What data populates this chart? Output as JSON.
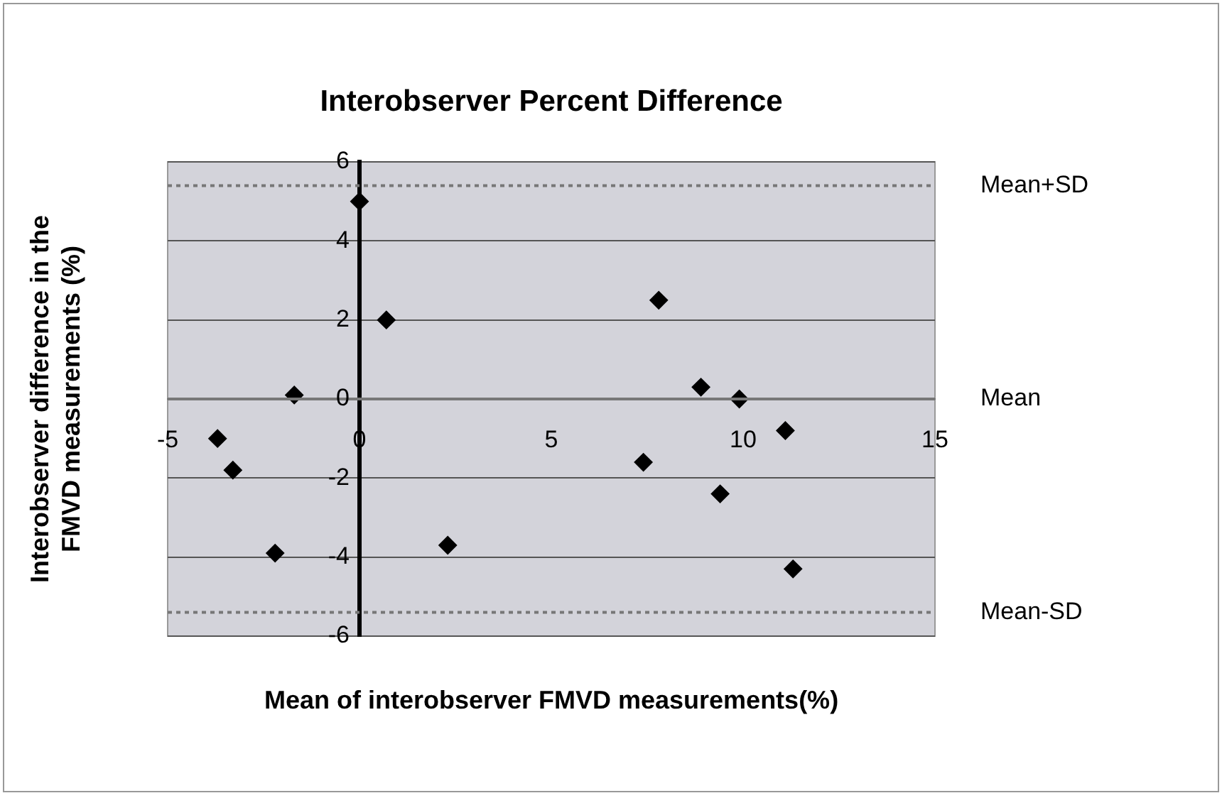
{
  "chart_data": {
    "type": "scatter",
    "title": "Interobserver Percent Difference",
    "xlabel": "Mean of interobserver FMVD measurements(%)",
    "ylabel": "Interobserver difference in the FMVD measurements (%)",
    "series": [
      {
        "color": "#000000",
        "x": [
          0,
          0.7,
          -1.7,
          -3.7,
          -3.3,
          -2.2,
          2.3,
          7.8,
          8.9,
          9.9,
          11.1,
          7.4,
          9.4,
          11.3
        ],
        "values": [
          5.0,
          2.0,
          0.1,
          -1.0,
          -1.8,
          -3.9,
          -3.7,
          2.5,
          0.3,
          0.0,
          -0.8,
          -1.6,
          -2.4,
          -4.3
        ]
      }
    ],
    "xlim": [
      -5,
      15
    ],
    "xticks": [
      -5,
      0,
      5,
      10,
      15
    ],
    "ylim": [
      -6,
      6
    ],
    "yticks": [
      -6,
      -4,
      -2,
      0,
      2,
      4,
      6
    ],
    "ref_lines": [
      {
        "axis": "y",
        "value": 5.4,
        "label": "Mean+SD",
        "line_style": "dotted",
        "color": "#777777"
      },
      {
        "axis": "y",
        "value": 0,
        "label": "Mean",
        "line_style": "solid",
        "color": "#777777"
      },
      {
        "axis": "y",
        "value": -5.4,
        "label": "Mean-SD",
        "line_style": "dotted",
        "color": "#777777"
      }
    ],
    "grid": "y",
    "legend": false,
    "marker": "diamond"
  }
}
